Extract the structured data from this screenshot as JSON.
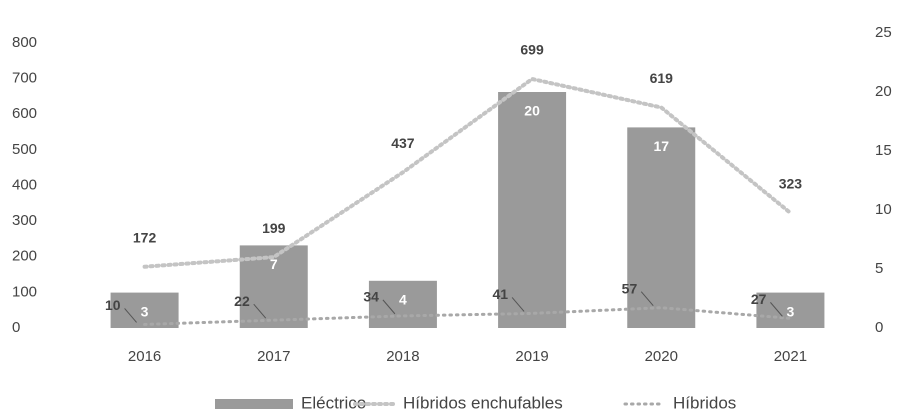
{
  "chart_data": {
    "type": "bar",
    "categories": [
      "2016",
      "2017",
      "2018",
      "2019",
      "2020",
      "2021"
    ],
    "series": [
      {
        "name": "Eléctrico",
        "type": "bar",
        "axis": "y2",
        "color": "#9a9a9a",
        "values": [
          3,
          7,
          4,
          20,
          17,
          3
        ]
      },
      {
        "name": "Híbridos enchufables",
        "type": "line",
        "axis": "y",
        "color": "#c4c4c4",
        "values": [
          172,
          199,
          437,
          699,
          619,
          323
        ]
      },
      {
        "name": "Híbridos",
        "type": "line",
        "axis": "y",
        "color": "#a8a8a8",
        "values": [
          10,
          22,
          34,
          41,
          57,
          27
        ]
      }
    ],
    "ylim": [
      0,
      800
    ],
    "yticks": [
      0,
      100,
      200,
      300,
      400,
      500,
      600,
      700,
      800
    ],
    "y2lim": [
      0,
      25
    ],
    "y2ticks": [
      0,
      5,
      10,
      15,
      20,
      25
    ],
    "legend": "bottom",
    "grid": false
  }
}
